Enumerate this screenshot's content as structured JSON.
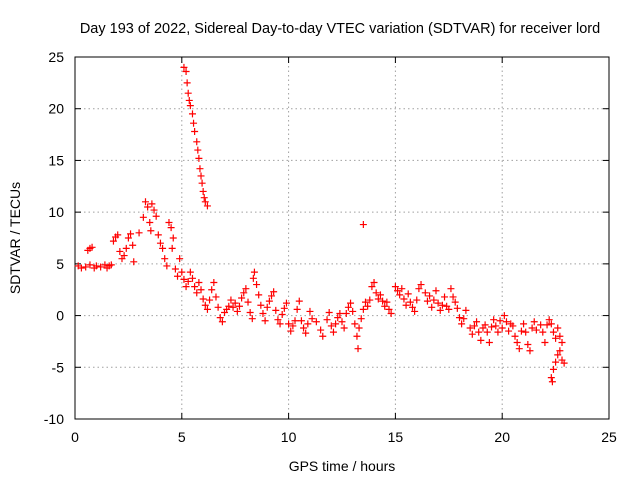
{
  "chart_data": {
    "type": "scatter",
    "title": "Day 193 of 2022, Sidereal Day-to-day VTEC variation (SDTVAR) for receiver lord",
    "xlabel": "GPS time / hours",
    "ylabel": "SDTVAR / TECUs",
    "xlim": [
      0,
      25
    ],
    "ylim": [
      -10,
      25
    ],
    "xticks": [
      0,
      5,
      10,
      15,
      20,
      25
    ],
    "yticks": [
      -10,
      -5,
      0,
      5,
      10,
      15,
      20,
      25
    ],
    "grid": true,
    "marker": "plus",
    "color": "#ff0000",
    "series": [
      {
        "name": "SDTVAR",
        "points": [
          [
            0.15,
            4.8
          ],
          [
            0.3,
            4.6
          ],
          [
            0.5,
            4.7
          ],
          [
            0.6,
            6.3
          ],
          [
            0.7,
            6.5
          ],
          [
            0.8,
            6.6
          ],
          [
            0.7,
            4.9
          ],
          [
            0.9,
            4.6
          ],
          [
            1.0,
            4.8
          ],
          [
            1.2,
            4.7
          ],
          [
            1.4,
            4.9
          ],
          [
            1.5,
            4.6
          ],
          [
            1.6,
            4.8
          ],
          [
            1.7,
            4.9
          ],
          [
            1.8,
            7.2
          ],
          [
            1.9,
            7.6
          ],
          [
            2.0,
            7.8
          ],
          [
            2.1,
            6.2
          ],
          [
            2.2,
            5.5
          ],
          [
            2.3,
            5.8
          ],
          [
            2.4,
            6.5
          ],
          [
            2.5,
            7.5
          ],
          [
            2.6,
            7.9
          ],
          [
            2.7,
            6.8
          ],
          [
            2.75,
            5.2
          ],
          [
            3.0,
            8.0
          ],
          [
            3.2,
            9.5
          ],
          [
            3.3,
            11.0
          ],
          [
            3.4,
            10.5
          ],
          [
            3.5,
            9.0
          ],
          [
            3.55,
            8.2
          ],
          [
            3.6,
            10.8
          ],
          [
            3.7,
            10.2
          ],
          [
            3.8,
            9.6
          ],
          [
            3.9,
            7.8
          ],
          [
            4.0,
            7.0
          ],
          [
            4.1,
            6.5
          ],
          [
            4.2,
            5.5
          ],
          [
            4.3,
            4.8
          ],
          [
            4.4,
            9.0
          ],
          [
            4.5,
            8.5
          ],
          [
            4.6,
            7.5
          ],
          [
            4.55,
            6.5
          ],
          [
            4.7,
            4.5
          ],
          [
            4.8,
            3.8
          ],
          [
            4.9,
            5.5
          ],
          [
            5.0,
            4.2
          ],
          [
            5.1,
            3.5
          ],
          [
            5.2,
            2.8
          ],
          [
            5.3,
            3.3
          ],
          [
            5.4,
            4.2
          ],
          [
            5.5,
            3.6
          ],
          [
            5.6,
            2.8
          ],
          [
            5.7,
            2.2
          ],
          [
            5.8,
            3.2
          ],
          [
            5.9,
            2.5
          ],
          [
            6.0,
            1.6
          ],
          [
            6.1,
            1.0
          ],
          [
            6.2,
            0.6
          ],
          [
            6.3,
            1.5
          ],
          [
            6.4,
            2.5
          ],
          [
            6.5,
            3.2
          ],
          [
            6.6,
            1.8
          ],
          [
            6.7,
            0.8
          ],
          [
            6.8,
            -0.2
          ],
          [
            6.9,
            -0.6
          ],
          [
            7.0,
            0.3
          ],
          [
            7.1,
            0.6
          ],
          [
            7.2,
            0.9
          ],
          [
            7.3,
            1.5
          ],
          [
            7.4,
            0.8
          ],
          [
            7.5,
            1.2
          ],
          [
            7.6,
            0.4
          ],
          [
            7.7,
            0.9
          ],
          [
            7.8,
            1.7
          ],
          [
            7.9,
            2.2
          ],
          [
            8.0,
            2.6
          ],
          [
            8.1,
            1.3
          ],
          [
            8.2,
            0.3
          ],
          [
            8.3,
            -0.3
          ],
          [
            8.35,
            3.6
          ],
          [
            8.4,
            4.2
          ],
          [
            8.5,
            3.0
          ],
          [
            8.6,
            2.0
          ],
          [
            8.7,
            1.0
          ],
          [
            8.8,
            0.2
          ],
          [
            8.9,
            -0.5
          ],
          [
            9.0,
            0.8
          ],
          [
            9.1,
            1.4
          ],
          [
            9.2,
            1.9
          ],
          [
            9.3,
            2.3
          ],
          [
            9.4,
            0.5
          ],
          [
            9.5,
            -0.4
          ],
          [
            9.6,
            -0.8
          ],
          [
            9.7,
            0.1
          ],
          [
            9.8,
            0.7
          ],
          [
            9.9,
            1.2
          ],
          [
            10.0,
            -0.8
          ],
          [
            10.1,
            -1.5
          ],
          [
            10.2,
            -1.0
          ],
          [
            10.3,
            -0.5
          ],
          [
            10.4,
            0.6
          ],
          [
            10.5,
            1.4
          ],
          [
            10.6,
            -0.5
          ],
          [
            10.7,
            -1.2
          ],
          [
            10.8,
            -1.7
          ],
          [
            10.9,
            -0.8
          ],
          [
            11.0,
            0.4
          ],
          [
            11.1,
            -0.3
          ],
          [
            11.3,
            -0.6
          ],
          [
            11.5,
            -1.4
          ],
          [
            11.6,
            -2.0
          ],
          [
            11.8,
            -0.4
          ],
          [
            11.9,
            0.3
          ],
          [
            12.0,
            -1.0
          ],
          [
            12.1,
            -1.6
          ],
          [
            12.2,
            -0.8
          ],
          [
            12.3,
            -0.2
          ],
          [
            12.4,
            0.2
          ],
          [
            12.5,
            -0.6
          ],
          [
            12.6,
            -1.2
          ],
          [
            12.7,
            0.2
          ],
          [
            12.8,
            0.8
          ],
          [
            12.9,
            1.2
          ],
          [
            13.0,
            0.4
          ],
          [
            13.1,
            -0.8
          ],
          [
            13.2,
            -2.0
          ],
          [
            13.25,
            -3.2
          ],
          [
            13.3,
            -1.2
          ],
          [
            13.4,
            -0.3
          ],
          [
            13.5,
            0.6
          ],
          [
            13.6,
            1.3
          ],
          [
            13.7,
            0.9
          ],
          [
            13.8,
            1.5
          ],
          [
            13.9,
            2.8
          ],
          [
            14.0,
            3.2
          ],
          [
            14.1,
            2.2
          ],
          [
            14.2,
            1.6
          ],
          [
            14.3,
            2.0
          ],
          [
            14.4,
            1.4
          ],
          [
            14.5,
            0.9
          ],
          [
            14.6,
            1.3
          ],
          [
            14.7,
            0.6
          ],
          [
            14.8,
            0.2
          ],
          [
            15.0,
            2.8
          ],
          [
            15.1,
            2.4
          ],
          [
            15.2,
            2.0
          ],
          [
            15.3,
            2.6
          ],
          [
            15.4,
            1.6
          ],
          [
            15.5,
            1.0
          ],
          [
            15.6,
            2.1
          ],
          [
            15.7,
            1.3
          ],
          [
            15.8,
            0.8
          ],
          [
            15.9,
            0.4
          ],
          [
            16.0,
            1.5
          ],
          [
            16.1,
            2.6
          ],
          [
            16.2,
            3.0
          ],
          [
            16.4,
            2.2
          ],
          [
            16.5,
            1.4
          ],
          [
            16.6,
            1.9
          ],
          [
            16.7,
            0.8
          ],
          [
            16.8,
            1.5
          ],
          [
            16.9,
            2.4
          ],
          [
            17.0,
            1.2
          ],
          [
            17.1,
            0.5
          ],
          [
            17.2,
            1.0
          ],
          [
            17.3,
            1.8
          ],
          [
            17.4,
            0.9
          ],
          [
            17.5,
            0.6
          ],
          [
            17.6,
            2.6
          ],
          [
            17.7,
            1.8
          ],
          [
            17.8,
            1.3
          ],
          [
            17.9,
            0.7
          ],
          [
            18.0,
            -0.2
          ],
          [
            18.1,
            -0.8
          ],
          [
            18.2,
            -0.3
          ],
          [
            18.3,
            0.5
          ],
          [
            18.5,
            -1.2
          ],
          [
            18.6,
            -1.8
          ],
          [
            18.7,
            -1.0
          ],
          [
            18.8,
            -0.6
          ],
          [
            18.9,
            -1.6
          ],
          [
            19.0,
            -2.4
          ],
          [
            19.1,
            -1.2
          ],
          [
            19.2,
            -0.9
          ],
          [
            19.3,
            -1.6
          ],
          [
            19.4,
            -2.6
          ],
          [
            19.5,
            -1.1
          ],
          [
            19.6,
            -0.4
          ],
          [
            19.7,
            -1.0
          ],
          [
            19.8,
            -1.6
          ],
          [
            19.9,
            -0.5
          ],
          [
            20.0,
            -1.2
          ],
          [
            20.1,
            0.0
          ],
          [
            20.2,
            -0.6
          ],
          [
            20.3,
            -1.5
          ],
          [
            20.4,
            -0.8
          ],
          [
            20.5,
            -1.0
          ],
          [
            20.6,
            -2.0
          ],
          [
            20.7,
            -2.6
          ],
          [
            20.8,
            -3.2
          ],
          [
            20.9,
            -1.5
          ],
          [
            21.0,
            -0.8
          ],
          [
            21.1,
            -1.6
          ],
          [
            21.2,
            -2.8
          ],
          [
            21.3,
            -3.4
          ],
          [
            21.4,
            -1.2
          ],
          [
            21.5,
            -0.6
          ],
          [
            21.6,
            -1.4
          ],
          [
            21.8,
            -0.9
          ],
          [
            21.9,
            -1.6
          ],
          [
            22.0,
            -2.6
          ],
          [
            22.1,
            -0.9
          ],
          [
            22.2,
            -0.4
          ],
          [
            22.3,
            -0.8
          ],
          [
            22.4,
            -1.6
          ],
          [
            22.5,
            -2.2
          ],
          [
            22.6,
            -1.2
          ],
          [
            22.7,
            -2.0
          ],
          [
            22.8,
            -2.6
          ],
          [
            22.3,
            -6.0
          ],
          [
            22.35,
            -6.4
          ],
          [
            22.4,
            -5.2
          ],
          [
            22.5,
            -4.5
          ],
          [
            22.6,
            -3.8
          ],
          [
            22.7,
            -3.4
          ],
          [
            22.8,
            -4.3
          ],
          [
            22.9,
            -4.6
          ],
          [
            5.1,
            24.0
          ],
          [
            5.2,
            23.6
          ],
          [
            5.25,
            22.5
          ],
          [
            5.3,
            21.5
          ],
          [
            5.35,
            20.8
          ],
          [
            5.4,
            20.3
          ],
          [
            5.5,
            19.5
          ],
          [
            5.55,
            18.6
          ],
          [
            5.6,
            17.8
          ],
          [
            5.7,
            16.8
          ],
          [
            5.75,
            16.0
          ],
          [
            5.8,
            15.2
          ],
          [
            5.85,
            14.2
          ],
          [
            5.9,
            13.5
          ],
          [
            5.95,
            12.8
          ],
          [
            6.0,
            12.0
          ],
          [
            6.05,
            11.4
          ],
          [
            6.1,
            11.0
          ],
          [
            6.2,
            10.6
          ],
          [
            13.5,
            8.8
          ]
        ]
      }
    ]
  }
}
